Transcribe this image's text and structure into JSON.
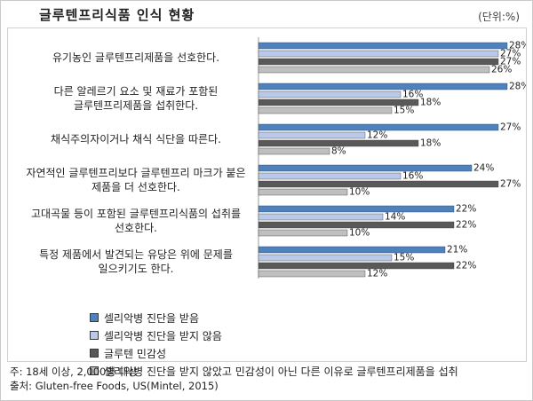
{
  "header": {
    "title": "글루텐프리식품 인식 현황",
    "unit": "(단위:%)"
  },
  "colors": {
    "series": [
      "#4f81bd",
      "#b9c9ea",
      "#595959",
      "#bfbfbf"
    ]
  },
  "chart_data": {
    "type": "bar",
    "orientation": "horizontal",
    "xlim": [
      0,
      28
    ],
    "grid": false,
    "legend_position": "bottom-left",
    "categories": [
      [
        "유기농인 글루텐프리제품을 선호한다."
      ],
      [
        "다른 알레르기 요소 및 재료가 포함된",
        "글루텐프리제품을 섭취한다."
      ],
      [
        "채식주의자이거나 채식 식단을 따른다."
      ],
      [
        "자연적인 글루텐프리보다 글루텐프리 마크가 붙은",
        "제품을 더 선호한다."
      ],
      [
        "고대곡물 등이 포함된 글루텐프리식품의 섭취를",
        "선호한다."
      ],
      [
        "특정 제품에서 발견되는 유당은 위에 문제를",
        "일으키기도 한다."
      ]
    ],
    "series": [
      {
        "name": "셀리악병 진단을 받음",
        "values": [
          28,
          28,
          27,
          24,
          22,
          21
        ]
      },
      {
        "name": "셀리악병 진단을 받지 않음",
        "values": [
          27,
          16,
          12,
          16,
          14,
          15
        ]
      },
      {
        "name": "글루텐 민감성",
        "values": [
          27,
          18,
          18,
          27,
          22,
          22
        ]
      },
      {
        "name": "셀리악병 진단을 받지 않았고 민감성이 아닌 다른 이유로 글루텐프리제품을 섭취",
        "values": [
          26,
          15,
          8,
          10,
          10,
          12
        ]
      }
    ],
    "value_suffix": "%"
  },
  "notes": {
    "note": "주: 18세 이상, 2,000명 대상",
    "source": "출처: Gluten-free Foods, US(Mintel, 2015)"
  }
}
